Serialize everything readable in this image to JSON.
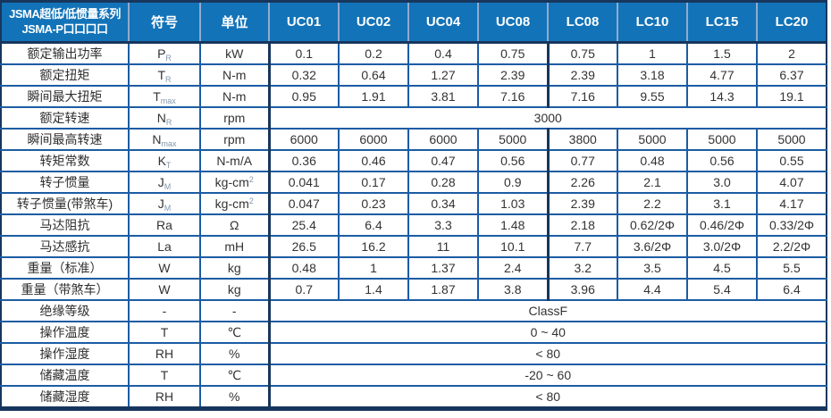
{
  "table": {
    "header": {
      "title_line1": "JSMA超低/低惯量系列",
      "title_line2": "JSMA-P口口口口",
      "symbol_col": "符号",
      "unit_col": "单位",
      "models": [
        "UC01",
        "UC02",
        "UC04",
        "UC08",
        "LC08",
        "LC10",
        "LC15",
        "LC20"
      ]
    },
    "rows": [
      {
        "label": "额定输出功率",
        "symbol": "P",
        "symbol_sub": "R",
        "unit": "kW",
        "values": [
          "0.1",
          "0.2",
          "0.4",
          "0.75",
          "0.75",
          "1",
          "1.5",
          "2"
        ]
      },
      {
        "label": "额定扭矩",
        "symbol": "T",
        "symbol_sub": "R",
        "unit": "N-m",
        "values": [
          "0.32",
          "0.64",
          "1.27",
          "2.39",
          "2.39",
          "3.18",
          "4.77",
          "6.37"
        ]
      },
      {
        "label": "瞬间最大扭矩",
        "symbol": "T",
        "symbol_sub": "max",
        "unit": "N-m",
        "values": [
          "0.95",
          "1.91",
          "3.81",
          "7.16",
          "7.16",
          "9.55",
          "14.3",
          "19.1"
        ]
      },
      {
        "label": "额定转速",
        "symbol": "N",
        "symbol_sub": "R",
        "unit": "rpm",
        "merged": "3000"
      },
      {
        "label": "瞬间最高转速",
        "symbol": "N",
        "symbol_sub": "max",
        "unit": "rpm",
        "values": [
          "6000",
          "6000",
          "6000",
          "5000",
          "3800",
          "5000",
          "5000",
          "5000"
        ]
      },
      {
        "label": "转矩常数",
        "symbol": "K",
        "symbol_sub": "T",
        "unit": "N-m/A",
        "values": [
          "0.36",
          "0.46",
          "0.47",
          "0.56",
          "0.77",
          "0.48",
          "0.56",
          "0.55"
        ]
      },
      {
        "label": "转子惯量",
        "symbol": "J",
        "symbol_sub": "M",
        "unit": "kg-cm",
        "unit_sup": "2",
        "values": [
          "0.041",
          "0.17",
          "0.28",
          "0.9",
          "2.26",
          "2.1",
          "3.0",
          "4.07"
        ]
      },
      {
        "label": "转子惯量(带煞车)",
        "symbol": "J",
        "symbol_sub": "M",
        "unit": "kg-cm",
        "unit_sup": "2",
        "values": [
          "0.047",
          "0.23",
          "0.34",
          "1.03",
          "2.39",
          "2.2",
          "3.1",
          "4.17"
        ]
      },
      {
        "label": "马达阻抗",
        "symbol": "Ra",
        "unit": "Ω",
        "values": [
          "25.4",
          "6.4",
          "3.3",
          "1.48",
          "2.18",
          "0.62/2Φ",
          "0.46/2Φ",
          "0.33/2Φ"
        ]
      },
      {
        "label": "马达感抗",
        "symbol": "La",
        "unit": "mH",
        "values": [
          "26.5",
          "16.2",
          "11",
          "10.1",
          "7.7",
          "3.6/2Φ",
          "3.0/2Φ",
          "2.2/2Φ"
        ]
      },
      {
        "label": "重量（标准）",
        "symbol": "W",
        "unit": "kg",
        "values": [
          "0.48",
          "1",
          "1.37",
          "2.4",
          "3.2",
          "3.5",
          "4.5",
          "5.5"
        ]
      },
      {
        "label": "重量（带煞车）",
        "symbol": "W",
        "unit": "kg",
        "values": [
          "0.7",
          "1.4",
          "1.87",
          "3.8",
          "3.96",
          "4.4",
          "5.4",
          "6.4"
        ]
      },
      {
        "label": "绝缘等级",
        "symbol": "-",
        "unit": "-",
        "merged": "ClassF"
      },
      {
        "label": "操作温度",
        "symbol": "T",
        "unit": "℃",
        "merged": "0 ~ 40"
      },
      {
        "label": "操作湿度",
        "symbol": "RH",
        "unit": "%",
        "merged": "< 80"
      },
      {
        "label": "储藏温度",
        "symbol": "T",
        "unit": "℃",
        "merged": "-20 ~ 60"
      },
      {
        "label": "储藏湿度",
        "symbol": "RH",
        "unit": "%",
        "merged": "< 80"
      }
    ],
    "colors": {
      "header_bg": "#1273b8",
      "header_divider": "#93aace",
      "grid_line": "#1c5ca3",
      "frame": "#17365d",
      "body_text": "#333333",
      "subscript": "#8296ad"
    }
  }
}
